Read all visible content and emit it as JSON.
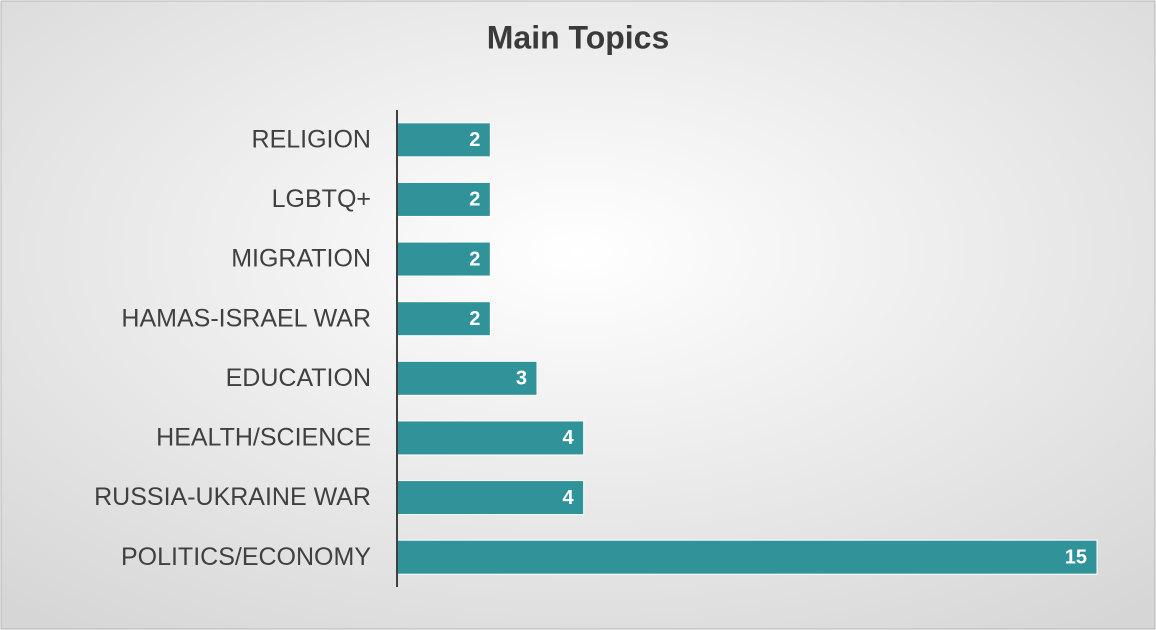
{
  "chart_data": {
    "type": "bar",
    "orientation": "horizontal",
    "title": "Main Topics",
    "categories": [
      "RELIGION",
      "LGBTQ+",
      "MIGRATION",
      "HAMAS-ISRAEL WAR",
      "EDUCATION",
      "HEALTH/SCIENCE",
      "RUSSIA-UKRAINE WAR",
      "POLITICS/ECONOMY"
    ],
    "values": [
      2,
      2,
      2,
      2,
      3,
      4,
      4,
      15
    ],
    "color": "#31939a"
  }
}
